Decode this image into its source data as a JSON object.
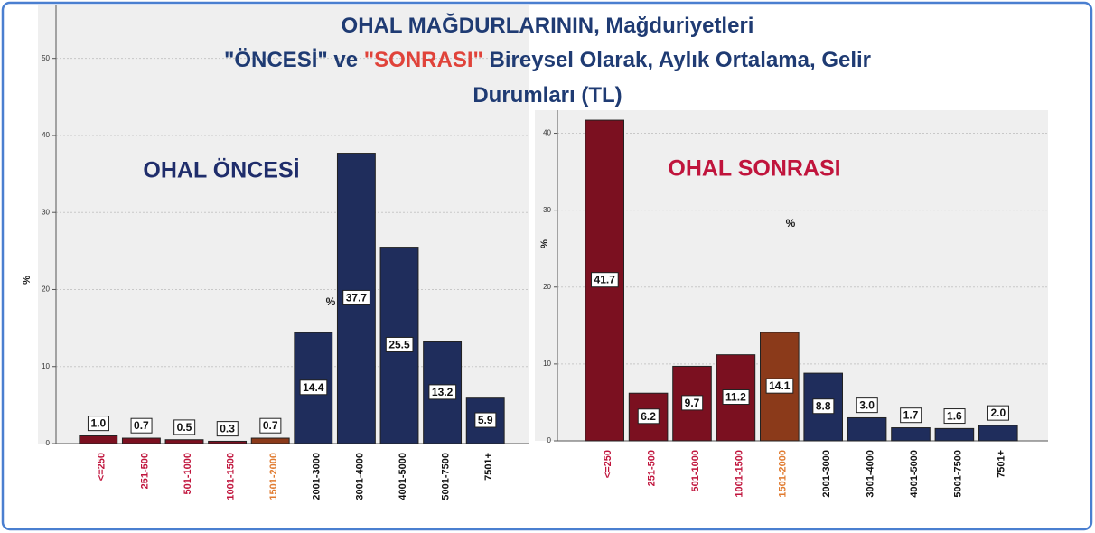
{
  "title": [
    [
      {
        "text": "OHAL MAĞDURLARININ,",
        "color": "#1f3b73"
      },
      {
        "text": " Mağduriyetleri",
        "color": "#1f3b73"
      }
    ],
    [
      {
        "text": "\"ÖNCESİ\"",
        "color": "#1f3b73"
      },
      {
        "text": " ve ",
        "color": "#1f3b73"
      },
      {
        "text": "\"SONRASI\"",
        "color": "#e0433a"
      },
      {
        "text": " Bireysel Olarak, Aylık Ortalama, Gelir",
        "color": "#1f3b73"
      }
    ],
    [
      {
        "text": "Durumları (TL)",
        "color": "#1f3b73"
      }
    ]
  ],
  "chart_data": [
    {
      "type": "bar",
      "title": "OHAL ÖNCESİ",
      "title_color": "#1f2d6b",
      "y_label": "%",
      "annotation": "%",
      "categories": [
        "<=250",
        "251-500",
        "501-1000",
        "1001-1500",
        "1501-2000",
        "2001-3000",
        "3001-4000",
        "4001-5000",
        "5001-7500",
        "7501+"
      ],
      "category_colors": [
        "#c0143c",
        "#c0143c",
        "#c0143c",
        "#c0143c",
        "#e07b30",
        "#111111",
        "#111111",
        "#111111",
        "#111111",
        "#111111"
      ],
      "values": [
        1.0,
        0.7,
        0.5,
        0.3,
        0.7,
        14.4,
        37.7,
        25.5,
        13.2,
        5.9
      ],
      "value_labels": [
        "1.0",
        "0.7",
        "0.5",
        "0.3",
        "0.7",
        "14.4",
        "37.7",
        "25.5",
        "13.2",
        "5.9"
      ],
      "colors": [
        "#7b1020",
        "#7b1020",
        "#7b1020",
        "#7b1020",
        "#8b3a1a",
        "#1f2d5c",
        "#1f2d5c",
        "#1f2d5c",
        "#1f2d5c",
        "#1f2d5c"
      ],
      "ylim": [
        0,
        57
      ],
      "yticks": [
        0,
        10,
        20,
        30,
        40,
        50
      ],
      "grid": true
    },
    {
      "type": "bar",
      "title": "OHAL SONRASI",
      "title_color": "#c0143c",
      "y_label": "%",
      "annotation": "%",
      "categories": [
        "<=250",
        "251-500",
        "501-1000",
        "1001-1500",
        "1501-2000",
        "2001-3000",
        "3001-4000",
        "4001-5000",
        "5001-7500",
        "7501+"
      ],
      "category_colors": [
        "#c0143c",
        "#c0143c",
        "#c0143c",
        "#c0143c",
        "#e07b30",
        "#111111",
        "#111111",
        "#111111",
        "#111111",
        "#111111"
      ],
      "values": [
        41.7,
        6.2,
        9.7,
        11.2,
        14.1,
        8.8,
        3.0,
        1.7,
        1.6,
        2.0
      ],
      "value_labels": [
        "41.7",
        "6.2",
        "9.7",
        "11.2",
        "14.1",
        "8.8",
        "3.0",
        "1.7",
        "1.6",
        "2.0"
      ],
      "colors": [
        "#7b1020",
        "#7b1020",
        "#7b1020",
        "#7b1020",
        "#8b3a1a",
        "#1f2d5c",
        "#1f2d5c",
        "#1f2d5c",
        "#1f2d5c",
        "#1f2d5c"
      ],
      "ylim": [
        0,
        43
      ],
      "yticks": [
        0,
        10,
        20,
        30,
        40
      ],
      "grid": true
    }
  ]
}
